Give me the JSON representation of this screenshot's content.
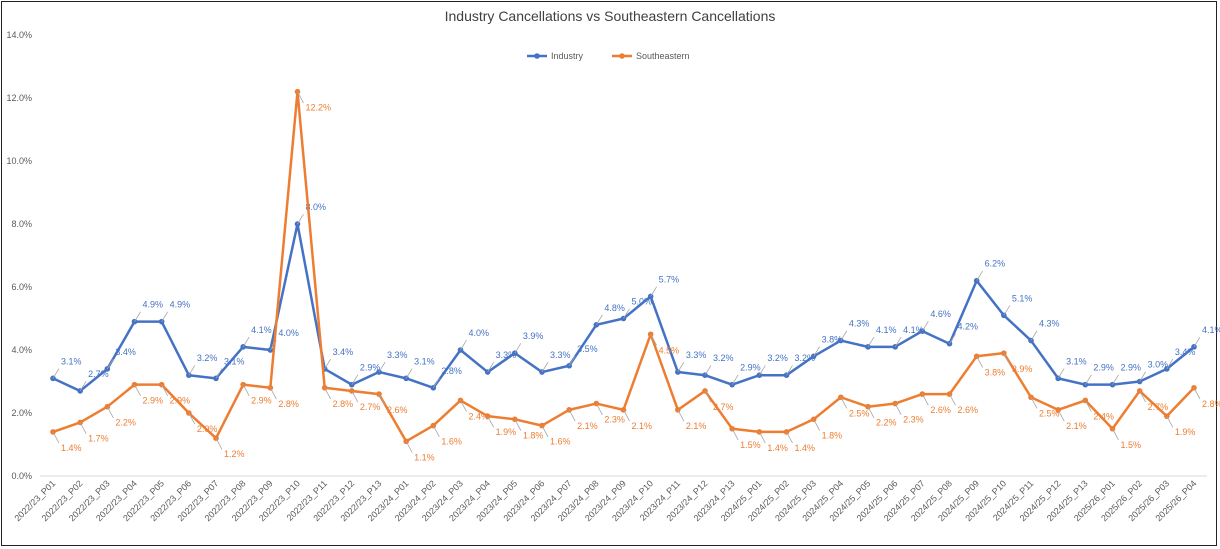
{
  "chart_data": {
    "type": "line",
    "title": "Industry Cancellations vs Southeastern Cancellations",
    "xlabel": "",
    "ylabel": "",
    "ylim": [
      0,
      14
    ],
    "yticks": [
      "0.0%",
      "2.0%",
      "4.0%",
      "6.0%",
      "8.0%",
      "10.0%",
      "12.0%",
      "14.0%"
    ],
    "legend_position": "top-center",
    "grid": false,
    "categories": [
      "2022/23_P01",
      "2022/23_P02",
      "2022/23_P03",
      "2022/23_P04",
      "2022/23_P05",
      "2022/23_P06",
      "2022/23_P07",
      "2022/23_P08",
      "2022/23_P09",
      "2022/23_P10",
      "2022/23_P11",
      "2022/23_P12",
      "2022/23_P13",
      "2023/24_P01",
      "2023/24_P02",
      "2023/24_P03",
      "2023/24_P04",
      "2023/24_P05",
      "2023/24_P06",
      "2023/24_P07",
      "2023/24_P08",
      "2023/24_P09",
      "2023/24_P10",
      "2023/24_P11",
      "2023/24_P12",
      "2023/24_P13",
      "2024/25_P01",
      "2024/25_P02",
      "2024/25_P03",
      "2024/25_P04",
      "2024/25_P05",
      "2024/25_P06",
      "2024/25_P07",
      "2024/25_P08",
      "2024/25_P09",
      "2024/25_P10",
      "2024/25_P11",
      "2024/25_P12",
      "2024/25_P13",
      "2025/26_P01",
      "2025/26_P02",
      "2025/26_P03",
      "2025/26_P04"
    ],
    "series": [
      {
        "name": "Industry",
        "color": "#4472C4",
        "values": [
          3.1,
          2.7,
          3.4,
          4.9,
          4.9,
          3.2,
          3.1,
          4.1,
          4.0,
          8.0,
          3.4,
          2.9,
          3.3,
          3.1,
          2.8,
          4.0,
          3.3,
          3.9,
          3.3,
          3.5,
          4.8,
          5.0,
          5.7,
          3.3,
          3.2,
          2.9,
          3.2,
          3.2,
          3.8,
          4.3,
          4.1,
          4.1,
          4.6,
          4.2,
          6.2,
          5.1,
          4.3,
          3.1,
          2.9,
          2.9,
          3.0,
          3.4,
          4.1
        ]
      },
      {
        "name": "Southeastern",
        "color": "#ED7D31",
        "values": [
          1.4,
          1.7,
          2.2,
          2.9,
          2.9,
          2.0,
          1.2,
          2.9,
          2.8,
          12.2,
          2.8,
          2.7,
          2.6,
          1.1,
          1.6,
          2.4,
          1.9,
          1.8,
          1.6,
          2.1,
          2.3,
          2.1,
          4.5,
          2.1,
          2.7,
          1.5,
          1.4,
          1.4,
          1.8,
          2.5,
          2.2,
          2.3,
          2.6,
          2.6,
          3.8,
          3.9,
          2.5,
          2.1,
          2.4,
          1.5,
          2.7,
          1.9,
          2.8
        ]
      }
    ]
  }
}
